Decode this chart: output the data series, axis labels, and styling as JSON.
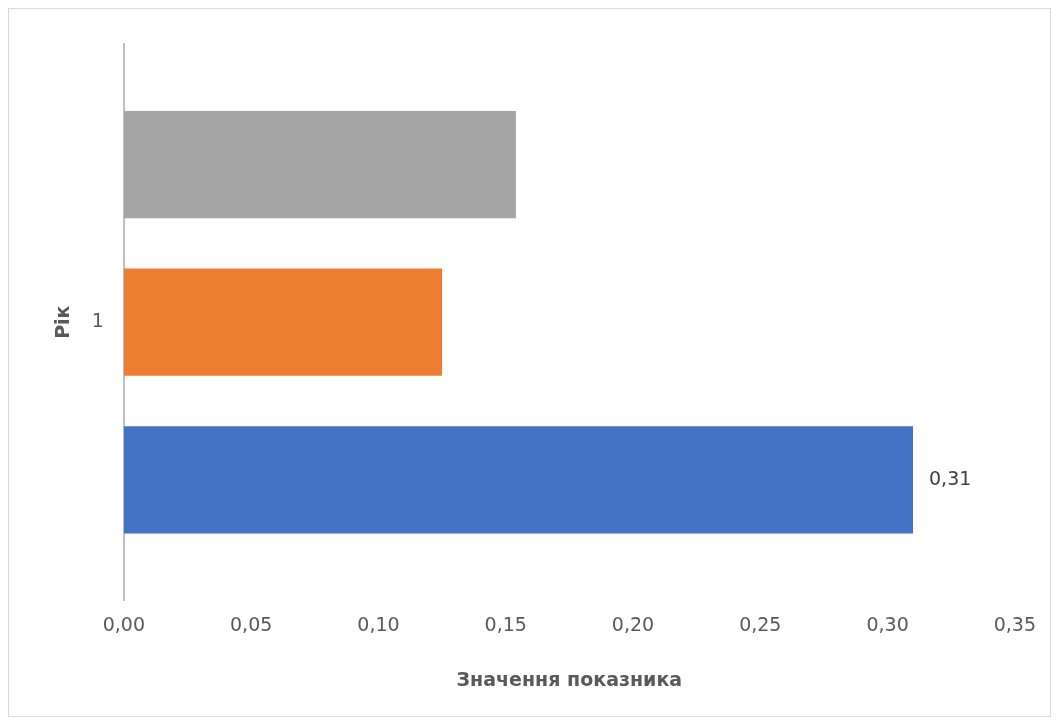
{
  "chart_data": {
    "type": "bar",
    "orientation": "horizontal",
    "xlabel": "Значення показника",
    "ylabel": "Рік",
    "categories": [
      "1"
    ],
    "series": [
      {
        "color": "#a5a5a5",
        "values": [
          0.154
        ]
      },
      {
        "color": "#ed7d31",
        "values": [
          0.125
        ]
      },
      {
        "color": "#4472c4",
        "values": [
          0.31
        ],
        "value_labels": [
          "0,31"
        ]
      }
    ],
    "xlim": [
      0,
      0.35
    ],
    "xticks": [
      {
        "value": 0,
        "label": "0,00"
      },
      {
        "value": 0.05,
        "label": "0,05"
      },
      {
        "value": 0.1,
        "label": "0,10"
      },
      {
        "value": 0.15,
        "label": "0,15"
      },
      {
        "value": 0.2,
        "label": "0,20"
      },
      {
        "value": 0.25,
        "label": "0,25"
      },
      {
        "value": 0.3,
        "label": "0,30"
      },
      {
        "value": 0.35,
        "label": "0,35"
      }
    ],
    "grid": false
  }
}
